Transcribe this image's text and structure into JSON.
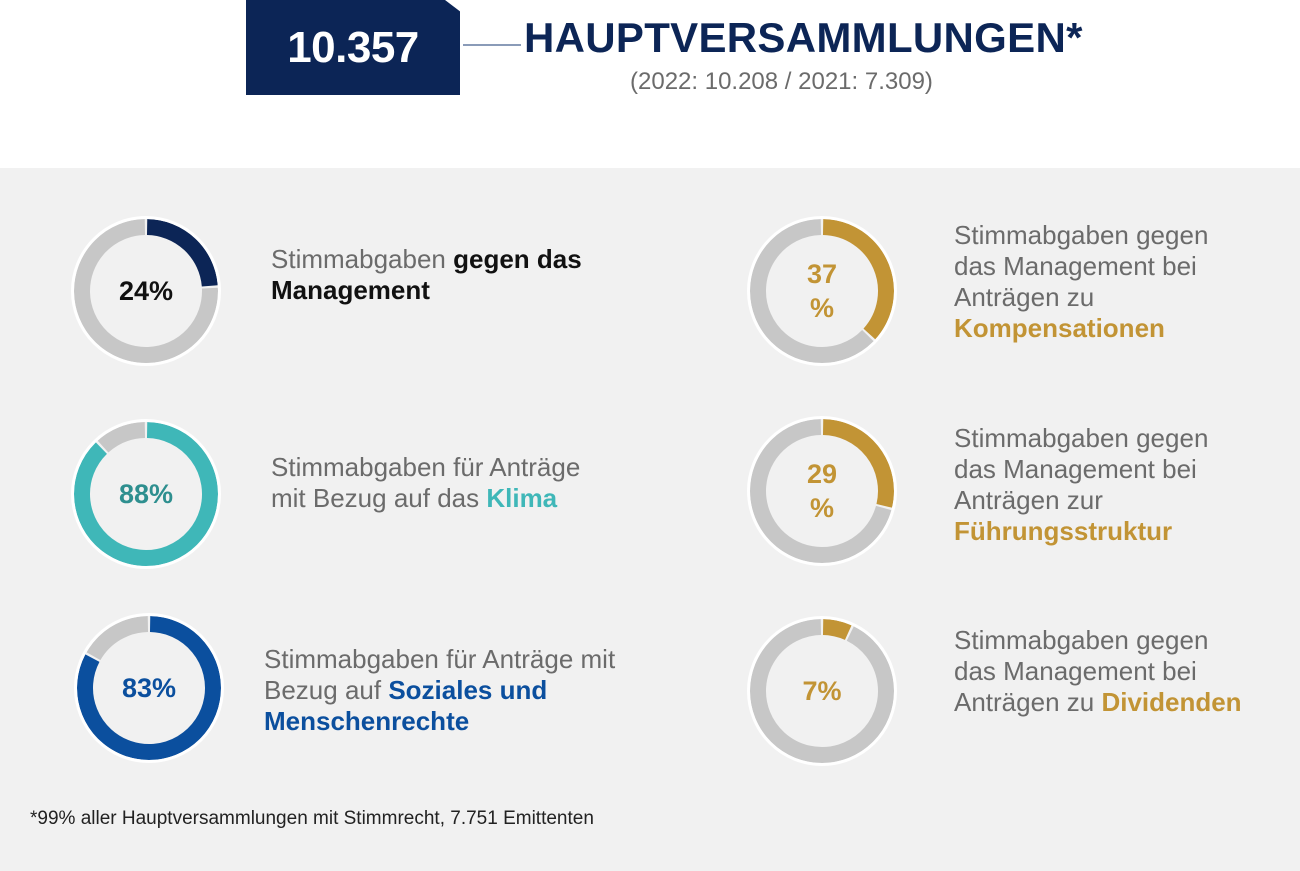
{
  "header": {
    "total": "10.357",
    "title": "HAUPTVERSAMMLUNGEN*",
    "subtitle": "(2022: 10.208 / 2021: 7.309)"
  },
  "colors": {
    "navy": "#0c2556",
    "track": "#c7c7c7",
    "gold": "#c29435",
    "teal": "#3fb7b8",
    "teal_text": "#2e8f8f",
    "blue": "#0b4f9e",
    "text_gray": "#6b6b6b"
  },
  "items": [
    {
      "pct_label": "24%",
      "text": "Stimmabgaben ",
      "highlight": "gegen das Management"
    },
    {
      "pct_label": "88%",
      "text": "Stimmabgaben für Anträge mit Bezug auf das ",
      "highlight": "Klima"
    },
    {
      "pct_label": "83%",
      "text": "Stimmabgaben für Anträge mit Bezug auf ",
      "highlight": "Soziales und Menschenrechte"
    },
    {
      "pct_label": "37 %",
      "text": "Stimmabgaben gegen das Management bei Anträgen zu ",
      "highlight": "Kompensationen"
    },
    {
      "pct_label": "29 %",
      "text": "Stimmabgaben gegen das Management bei Anträgen zur ",
      "highlight": "Führungsstruktur"
    },
    {
      "pct_label": "7%",
      "text": "Stimmabgaben gegen das Management bei Anträgen zu ",
      "highlight": "Dividenden"
    }
  ],
  "footnote": "*99% aller Hauptversammlungen mit Stimmrecht, 7.751 Emittenten",
  "chart_data": [
    {
      "type": "pie",
      "labels": [
        "Stimmabgaben gegen das Management",
        ""
      ],
      "values": [
        24,
        76
      ],
      "colors": [
        "#0c2556",
        "#c7c7c7"
      ]
    },
    {
      "type": "pie",
      "labels": [
        "Stimmabgaben für Anträge mit Bezug auf das Klima",
        ""
      ],
      "values": [
        88,
        12
      ],
      "colors": [
        "#3fb7b8",
        "#c7c7c7"
      ]
    },
    {
      "type": "pie",
      "labels": [
        "Stimmabgaben für Anträge mit Bezug auf Soziales und Menschenrechte",
        ""
      ],
      "values": [
        83,
        17
      ],
      "colors": [
        "#0b4f9e",
        "#c7c7c7"
      ]
    },
    {
      "type": "pie",
      "labels": [
        "Stimmabgaben gegen das Management bei Anträgen zu Kompensationen",
        ""
      ],
      "values": [
        37,
        63
      ],
      "colors": [
        "#c29435",
        "#c7c7c7"
      ]
    },
    {
      "type": "pie",
      "labels": [
        "Stimmabgaben gegen das Management bei Anträgen zur Führungsstruktur",
        ""
      ],
      "values": [
        29,
        71
      ],
      "colors": [
        "#c29435",
        "#c7c7c7"
      ]
    },
    {
      "type": "pie",
      "labels": [
        "Stimmabgaben gegen das Management bei Anträgen zu Dividenden",
        ""
      ],
      "values": [
        7,
        93
      ],
      "colors": [
        "#c29435",
        "#c7c7c7"
      ]
    }
  ]
}
